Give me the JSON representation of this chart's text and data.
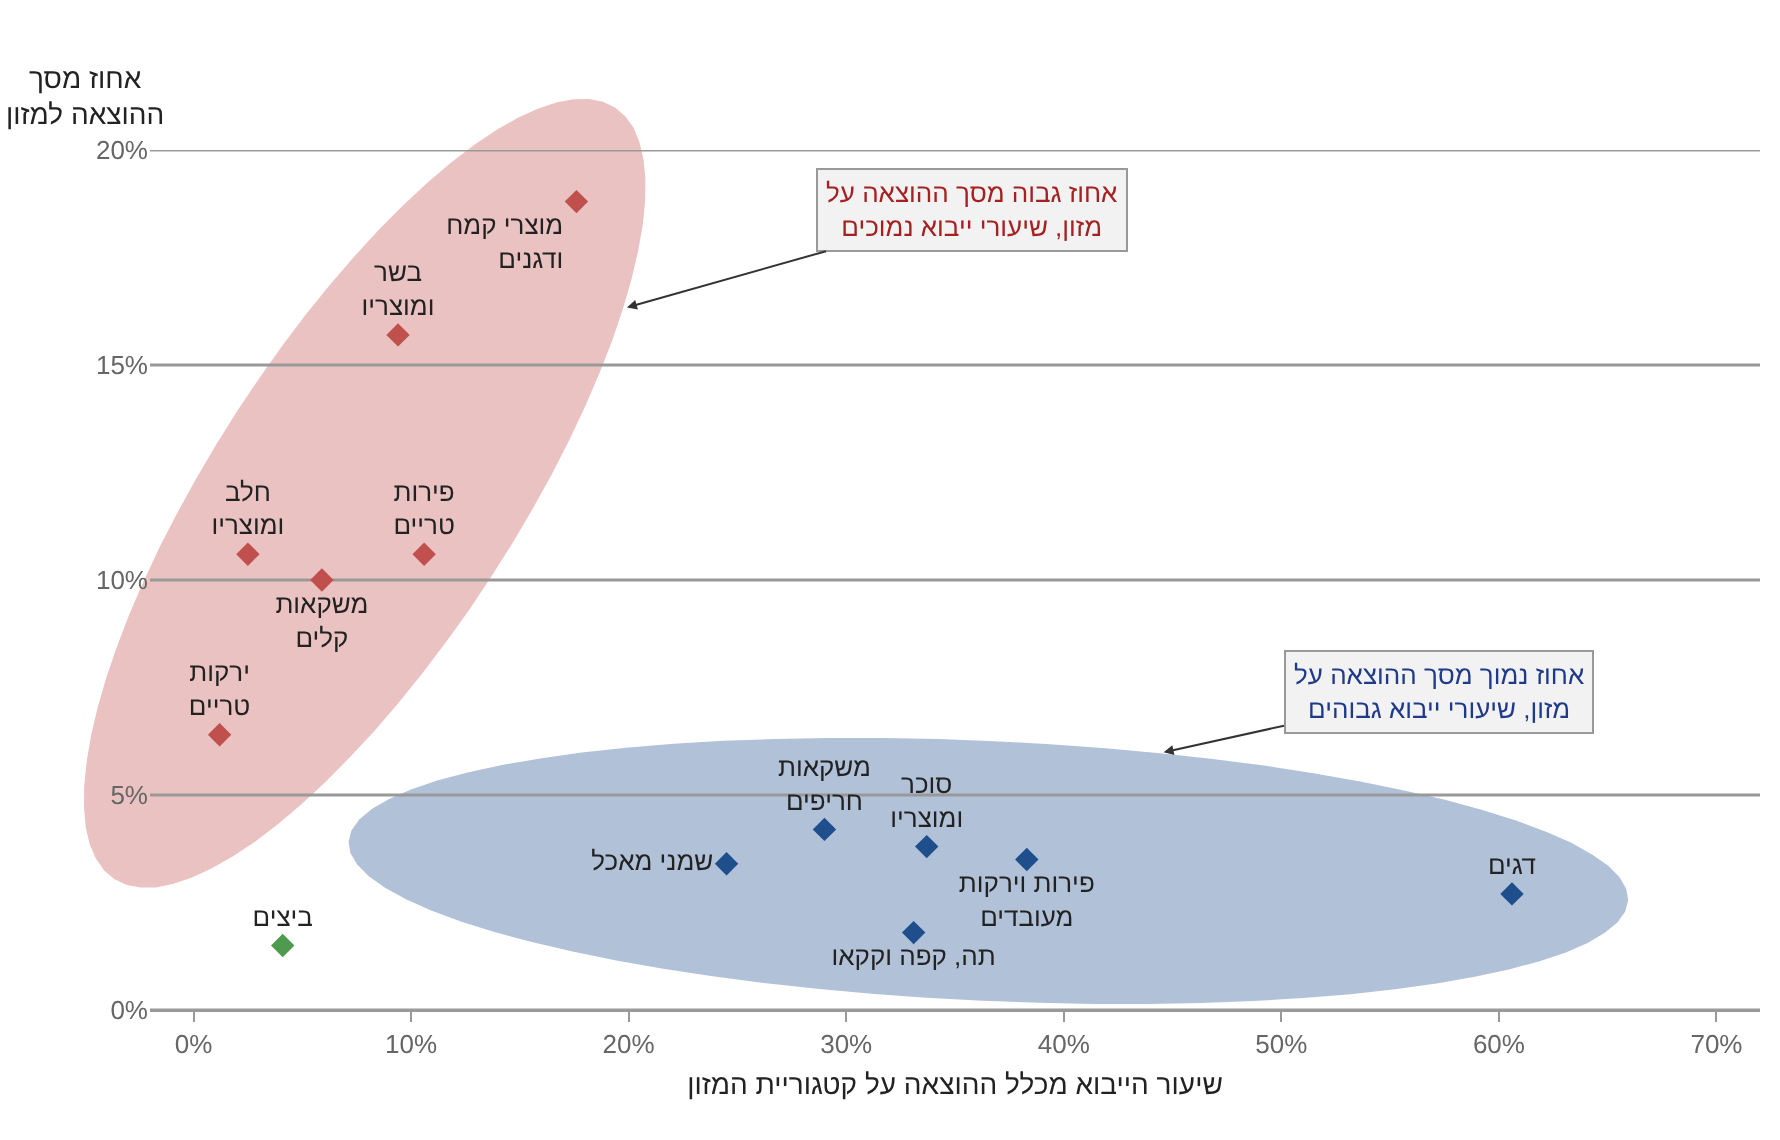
{
  "chart_data": {
    "type": "scatter",
    "xlabel": "שיעור הייבוא מכלל ההוצאה על קטגוריית המזון",
    "ylabel": "אחוז מסך\nההוצאה למזון",
    "xlim": [
      -2,
      72
    ],
    "ylim": [
      0,
      20
    ],
    "xticks": [
      {
        "value": 0,
        "label": "0%"
      },
      {
        "value": 10,
        "label": "10%"
      },
      {
        "value": 20,
        "label": "20%"
      },
      {
        "value": 30,
        "label": "30%"
      },
      {
        "value": 40,
        "label": "40%"
      },
      {
        "value": 50,
        "label": "50%"
      },
      {
        "value": 60,
        "label": "60%"
      },
      {
        "value": 70,
        "label": "70%"
      }
    ],
    "yticks": [
      {
        "value": 0,
        "label": "0%"
      },
      {
        "value": 5,
        "label": "5%"
      },
      {
        "value": 10,
        "label": "10%"
      },
      {
        "value": 15,
        "label": "15%"
      },
      {
        "value": 20,
        "label": "20%"
      }
    ],
    "grid": "y",
    "marker": "diamond",
    "series": [
      {
        "name": "מוצרי קמח\nודגנים",
        "color": "#c0504d",
        "x": [
          17.6
        ],
        "values": [
          18.8
        ]
      },
      {
        "name": "בשר\nומוצריו",
        "color": "#c0504d",
        "x": [
          9.4
        ],
        "values": [
          15.7
        ]
      },
      {
        "name": "חלב\nומוצריו",
        "color": "#c0504d",
        "x": [
          2.5
        ],
        "values": [
          10.6
        ]
      },
      {
        "name": "משקאות\nקלים",
        "color": "#c0504d",
        "x": [
          5.9
        ],
        "values": [
          10.0
        ]
      },
      {
        "name": "פירות\nטריים",
        "color": "#c0504d",
        "x": [
          10.6
        ],
        "values": [
          10.6
        ]
      },
      {
        "name": "ירקות\nטריים",
        "color": "#c0504d",
        "x": [
          1.2
        ],
        "values": [
          6.4
        ]
      },
      {
        "name": "ביצים",
        "color": "#4f9a4f",
        "x": [
          4.1
        ],
        "values": [
          1.5
        ]
      },
      {
        "name": "שמני מאכל",
        "color": "#1f4e8c",
        "x": [
          24.5
        ],
        "values": [
          3.4
        ]
      },
      {
        "name": "משקאות\nחריפים",
        "color": "#1f4e8c",
        "x": [
          29.0
        ],
        "values": [
          4.2
        ]
      },
      {
        "name": "סוכר\nומוצריו",
        "color": "#1f4e8c",
        "x": [
          33.7
        ],
        "values": [
          3.8
        ]
      },
      {
        "name": "פירות וירקות\nמעובדים",
        "color": "#1f4e8c",
        "x": [
          38.3
        ],
        "values": [
          3.5
        ]
      },
      {
        "name": "תה, קפה וקקאו",
        "color": "#1f4e8c",
        "x": [
          33.1
        ],
        "values": [
          1.8
        ]
      },
      {
        "name": "דגים",
        "color": "#1f4e8c",
        "x": [
          60.6
        ],
        "values": [
          2.7
        ]
      }
    ],
    "annotations": [
      "אחוז גבוה מסך ההוצאה על\nמזון, שיעורי ייבוא נמוכים",
      "אחוז נמוך מסך ההוצאה על\nמזון, שיעורי ייבוא גבוהים"
    ]
  }
}
